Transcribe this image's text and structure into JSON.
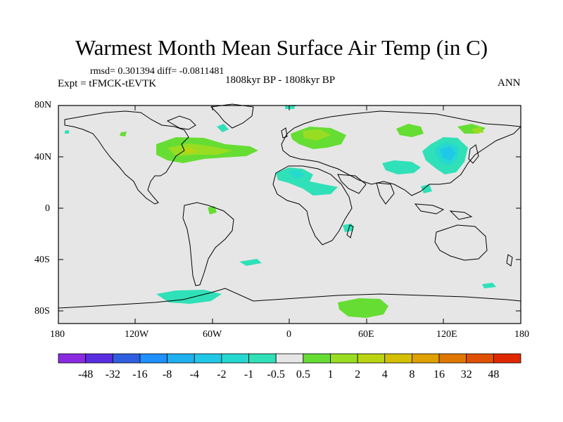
{
  "title": "Warmest Month Mean Surface Air Temp (in C)",
  "stats": "rmsd= 0.301394 diff= -0.0811481",
  "experiment": "Expt = tFMCK-tEVTK",
  "period": "1808kyr BP - 1808kyr BP",
  "season": "ANN",
  "map": {
    "lat_tick_labels": [
      "80N",
      "40N",
      "0",
      "40S",
      "80S"
    ],
    "lon_tick_labels": [
      "180",
      "120W",
      "60W",
      "0",
      "60E",
      "120E",
      "180"
    ],
    "background_color": "#e6e6e6",
    "coastline_color": "#000000"
  },
  "colorbar": {
    "labels": [
      "-48",
      "-32",
      "-16",
      "-8",
      "-4",
      "-2",
      "-1",
      "-0.5",
      "0.5",
      "1",
      "2",
      "4",
      "8",
      "16",
      "32",
      "48"
    ],
    "colors": [
      "#8a2be2",
      "#5a2de0",
      "#2f5fe0",
      "#1e90ff",
      "#1fb0f0",
      "#20c8e8",
      "#25d8d0",
      "#30e0b8",
      "#e6e6e6",
      "#66dd33",
      "#99dd22",
      "#bbd411",
      "#d4c000",
      "#e0a000",
      "#e07800",
      "#e05000",
      "#e02800"
    ]
  }
}
